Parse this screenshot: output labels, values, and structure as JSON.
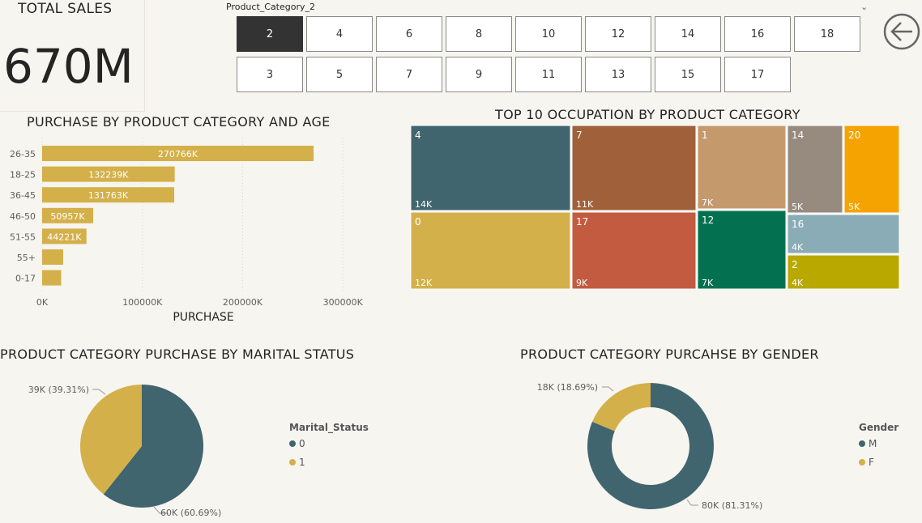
{
  "kpi": {
    "label": "TOTAL SALES",
    "value": "670M"
  },
  "slicer": {
    "title": "Product_Category_2",
    "selected": "2",
    "row1": [
      "2",
      "4",
      "6",
      "8",
      "10",
      "12",
      "14",
      "16",
      "18"
    ],
    "row2": [
      "3",
      "5",
      "7",
      "9",
      "11",
      "13",
      "15",
      "17"
    ]
  },
  "icons": {
    "back": "back-arrow-icon",
    "dropdown": "chevron-down-icon"
  },
  "colors": {
    "gold": "#d4b04a",
    "teal": "#41656f",
    "background": "#f7f5f0",
    "selected_tile": "#333333"
  },
  "chart_data": [
    {
      "id": "age_bar",
      "type": "bar",
      "orientation": "horizontal",
      "title": "PURCHASE BY PRODUCT CATEGORY AND AGE",
      "xlabel": "PURCHASE",
      "ylabel": "",
      "categories": [
        "26-35",
        "18-25",
        "36-45",
        "46-50",
        "51-55",
        "55+",
        "0-17"
      ],
      "values": [
        270766,
        132239,
        131763,
        50957,
        44221,
        21000,
        19000
      ],
      "data_labels": [
        "270766K",
        "132239K",
        "131763K",
        "50957K",
        "44221K",
        "",
        ""
      ],
      "xlim": [
        0,
        320000
      ],
      "xticks": [
        0,
        100000,
        200000,
        300000
      ],
      "xtick_labels": [
        "0K",
        "100000K",
        "200000K",
        "300000K"
      ],
      "grid": true,
      "color": "#d4b04a"
    },
    {
      "id": "occupation_treemap",
      "type": "treemap",
      "title": "TOP 10 OCCUPATION BY PRODUCT CATEGORY",
      "items": [
        {
          "name": "4",
          "label": "14K",
          "color": "#41656f"
        },
        {
          "name": "0",
          "label": "12K",
          "color": "#d4b04a"
        },
        {
          "name": "7",
          "label": "11K",
          "color": "#a0603a"
        },
        {
          "name": "17",
          "label": "9K",
          "color": "#c25b3f"
        },
        {
          "name": "1",
          "label": "7K",
          "color": "#c4996b"
        },
        {
          "name": "12",
          "label": "7K",
          "color": "#03714f"
        },
        {
          "name": "14",
          "label": "5K",
          "color": "#978b80"
        },
        {
          "name": "20",
          "label": "5K",
          "color": "#f5a300"
        },
        {
          "name": "16",
          "label": "4K",
          "color": "#8aacb7"
        },
        {
          "name": "2",
          "label": "4K",
          "color": "#b9a800"
        }
      ]
    },
    {
      "id": "marital_pie",
      "type": "pie",
      "title": "PRODUCT CATEGORY PURCHASE BY MARITAL STATUS",
      "legend_title": "Marital_Status",
      "legend_position": "right",
      "slices": [
        {
          "name": "0",
          "value": 60.69,
          "label": "60K (60.69%)",
          "color": "#41656f"
        },
        {
          "name": "1",
          "value": 39.31,
          "label": "39K (39.31%)",
          "color": "#d4b04a"
        }
      ]
    },
    {
      "id": "gender_donut",
      "type": "pie",
      "donut": true,
      "title": "PRODUCT CATEGORY PURCAHSE BY GENDER",
      "legend_title": "Gender",
      "legend_position": "right",
      "slices": [
        {
          "name": "M",
          "value": 81.31,
          "label": "80K (81.31%)",
          "color": "#41656f"
        },
        {
          "name": "F",
          "value": 18.69,
          "label": "18K (18.69%)",
          "color": "#d4b04a"
        }
      ]
    }
  ]
}
